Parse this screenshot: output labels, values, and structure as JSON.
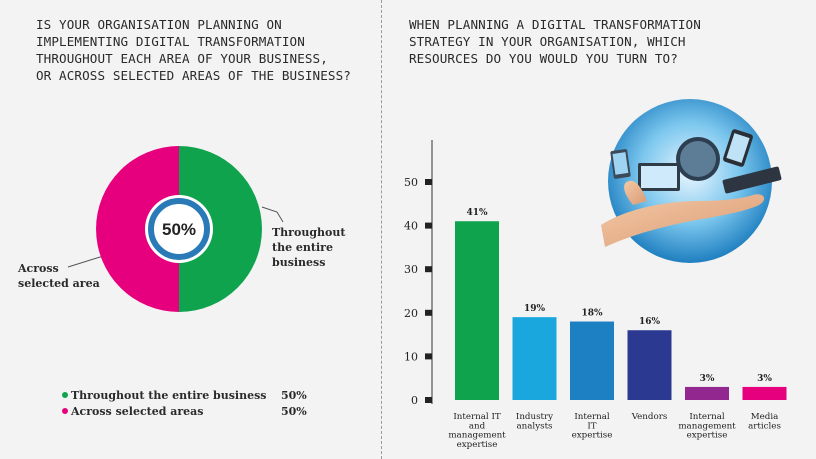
{
  "left": {
    "title": "IS YOUR ORGANISATION PLANNING ON\nIMPLEMENTING DIGITAL TRANSFORMATION\nTHROUGHOUT EACH AREA OF YOUR BUSINESS,\nOR ACROSS SELECTED AREAS OF THE BUSINESS?"
  },
  "right": {
    "title": "WHEN PLANNING A DIGITAL TRANSFORMATION\nSTRATEGY IN YOUR ORGANISATION, WHICH\nRESOURCES DO YOU WOULD YOU TURN TO?"
  },
  "chart_data": [
    {
      "type": "pie",
      "center_label": "50%",
      "labels": [
        "Throughout\nthe entire business",
        "Across\nselected area"
      ],
      "values": [
        50,
        50
      ],
      "colors": [
        "#0fa34e",
        "#e6007e"
      ],
      "legend": [
        {
          "name": "Throughout the entire business",
          "value": "50%",
          "color": "#0fa34e"
        },
        {
          "name": "Across selected areas",
          "value": "50%",
          "color": "#e6007e"
        }
      ]
    },
    {
      "type": "bar",
      "categories": [
        "Internal IT\nand\nmanagement\nexpertise",
        "Industry\nanalysts",
        "Internal\nIT\nexpertise",
        "Vendors",
        "Internal\nmanagement\nexpertise",
        "Media\narticles"
      ],
      "values": [
        41,
        19,
        18,
        16,
        3,
        3
      ],
      "value_labels": [
        "41%",
        "19%",
        "18%",
        "16%",
        "3%",
        "3%"
      ],
      "colors": [
        "#0fa34e",
        "#1aa7dd",
        "#1d80c3",
        "#2b3990",
        "#92278f",
        "#e6007e"
      ],
      "ylim": [
        0,
        50
      ],
      "yticks": [
        0,
        10,
        20,
        30,
        40,
        50
      ],
      "grid": false
    }
  ]
}
